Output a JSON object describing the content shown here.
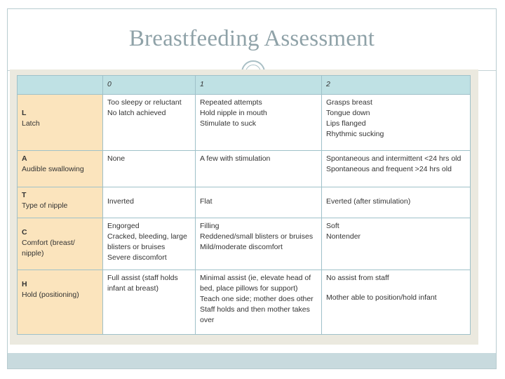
{
  "slide": {
    "title": "Breastfeeding Assessment"
  },
  "table": {
    "headers": [
      "",
      "0",
      "1",
      "2"
    ],
    "rows": [
      {
        "letter": "L",
        "name": "Latch",
        "score0": [
          "Too sleepy or reluctant",
          "No latch achieved"
        ],
        "score1": [
          "Repeated attempts",
          "Hold nipple in mouth",
          "Stimulate to suck"
        ],
        "score2": [
          "Grasps breast",
          "Tongue down",
          "Lips flanged",
          "Rhythmic sucking"
        ]
      },
      {
        "letter": "A",
        "name": "Audible swallowing",
        "score0": [
          "None"
        ],
        "score1": [
          "A few with stimulation"
        ],
        "score2": [
          "Spontaneous and intermittent <24 hrs old",
          "Spontaneous and frequent >24 hrs old"
        ]
      },
      {
        "letter": "T",
        "name": "Type of nipple",
        "score0": [
          "Inverted"
        ],
        "score1": [
          "Flat"
        ],
        "score2": [
          "Everted (after stimulation)"
        ]
      },
      {
        "letter": "C",
        "name": "Comfort (breast/ nipple)",
        "score0": [
          "Engorged",
          "Cracked, bleeding, large blisters or bruises",
          "Severe discomfort"
        ],
        "score1": [
          "Filling",
          "Reddened/small blisters or bruises",
          "Mild/moderate discomfort"
        ],
        "score2": [
          "Soft",
          "Nontender"
        ]
      },
      {
        "letter": "H",
        "name": "Hold (positioning)",
        "score0": [
          "Full assist (staff holds infant at breast)"
        ],
        "score1": [
          "Minimal assist (ie, elevate head of bed, place pillows for support)",
          "Teach one side; mother does other",
          "Staff holds and then mother takes over"
        ],
        "score2": [
          "No assist from staff",
          "Mother able to position/hold infant"
        ]
      }
    ]
  },
  "colors": {
    "header_bg": "#bfe1e4",
    "rowhead_bg": "#fbe4bd",
    "border": "#9fc1c9",
    "title": "#8fa2a8"
  }
}
